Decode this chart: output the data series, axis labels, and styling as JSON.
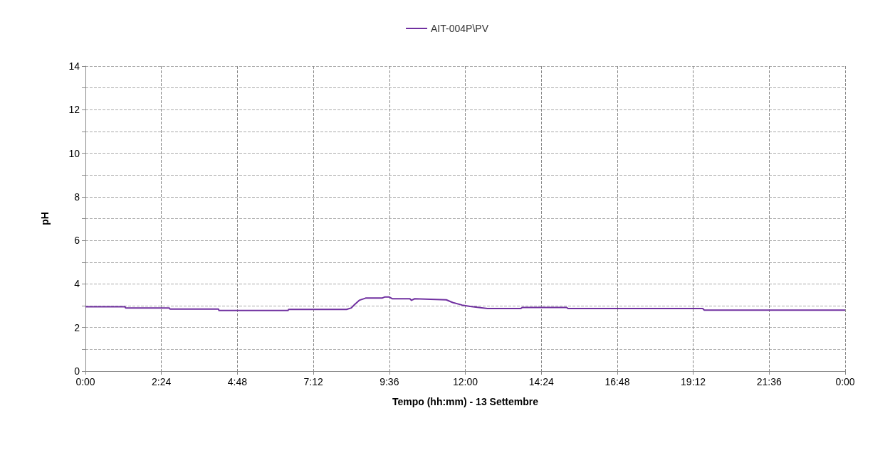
{
  "chart_data": {
    "type": "line",
    "xlabel": "Tempo (hh:mm) - 13 Settembre",
    "ylabel": "pH",
    "legend": "top",
    "grid": true,
    "marker": "none",
    "line_style": "solid",
    "xlim": [
      0,
      24
    ],
    "ylim": [
      0,
      14
    ],
    "xticks": [
      {
        "value": 0,
        "label": "0:00"
      },
      {
        "value": 2.4,
        "label": "2:24"
      },
      {
        "value": 4.8,
        "label": "4:48"
      },
      {
        "value": 7.2,
        "label": "7:12"
      },
      {
        "value": 9.6,
        "label": "9:36"
      },
      {
        "value": 12,
        "label": "12:00"
      },
      {
        "value": 14.4,
        "label": "14:24"
      },
      {
        "value": 16.8,
        "label": "16:48"
      },
      {
        "value": 19.2,
        "label": "19:12"
      },
      {
        "value": 21.6,
        "label": "21:36"
      },
      {
        "value": 24,
        "label": "0:00"
      }
    ],
    "yticks": [
      0,
      {
        "value": 1,
        "label": null
      },
      2,
      {
        "value": 3,
        "label": null
      },
      4,
      {
        "value": 5,
        "label": null
      },
      6,
      {
        "value": 7,
        "label": null
      },
      8,
      {
        "value": 9,
        "label": null
      },
      10,
      {
        "value": 11,
        "label": null
      },
      12,
      {
        "value": 13,
        "label": null
      },
      14
    ],
    "series": [
      {
        "name": "AIT-004P\\PV",
        "color": "#7030a0",
        "x": [
          0,
          1.25,
          1.27,
          2.65,
          2.67,
          4.2,
          4.22,
          6.4,
          6.42,
          8.25,
          8.4,
          8.5,
          8.65,
          8.85,
          9.37,
          9.45,
          9.6,
          9.7,
          10.25,
          10.3,
          10.4,
          10.9,
          11.4,
          11.6,
          11.9,
          12.15,
          12.7,
          13.75,
          13.8,
          15.2,
          15.25,
          19.5,
          19.55,
          24
        ],
        "values": [
          2.95,
          2.95,
          2.9,
          2.9,
          2.85,
          2.85,
          2.78,
          2.78,
          2.83,
          2.83,
          2.9,
          3.05,
          3.25,
          3.35,
          3.35,
          3.4,
          3.4,
          3.32,
          3.32,
          3.25,
          3.32,
          3.3,
          3.27,
          3.15,
          3.03,
          2.97,
          2.87,
          2.87,
          2.92,
          2.92,
          2.87,
          2.87,
          2.8,
          2.8
        ]
      }
    ]
  }
}
